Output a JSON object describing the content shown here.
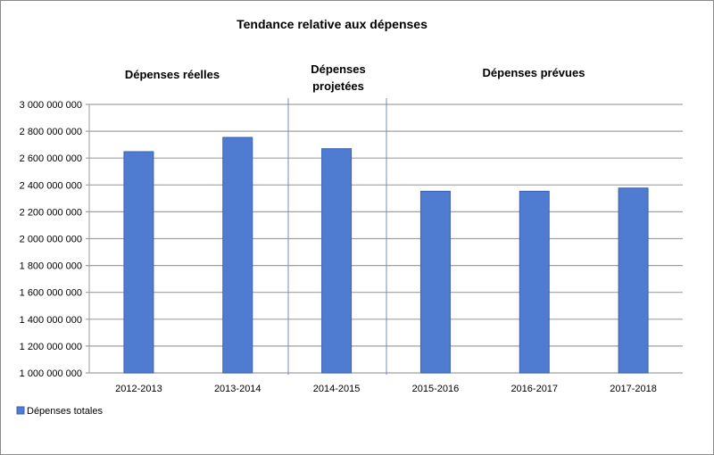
{
  "chart_data": {
    "type": "bar",
    "title": "Tendance relative aux dépenses",
    "categories": [
      "2012-2013",
      "2013-2014",
      "2014-2015",
      "2015-2016",
      "2016-2017",
      "2017-2018"
    ],
    "series": [
      {
        "name": "Dépenses totales",
        "values": [
          2648000000,
          2754000000,
          2670000000,
          2353000000,
          2353000000,
          2377000000
        ]
      }
    ],
    "ylim": [
      1000000000,
      3000000000
    ],
    "yticks": [
      1000000000,
      1200000000,
      1400000000,
      1600000000,
      1800000000,
      2000000000,
      2200000000,
      2400000000,
      2600000000,
      2800000000,
      3000000000
    ],
    "ytick_labels": [
      "1 000 000 000",
      "1 200 000 000",
      "1 400 000 000",
      "1 600 000 000",
      "1 800 000 000",
      "2 000 000 000",
      "2 200 000 000",
      "2 400 000 000",
      "2 600 000 000",
      "2 800 000 000",
      "3 000 000 000"
    ],
    "sections": [
      {
        "label": "Dépenses réelles",
        "line2": ""
      },
      {
        "label": "Dépenses",
        "line2": "projetées"
      },
      {
        "label": "Dépenses prévues",
        "line2": ""
      }
    ],
    "legend_position": "bottom-left",
    "grid": true,
    "colors": {
      "bar": "#4f7bd1",
      "bar_edge": "#3a62b5",
      "separator": "#6f8fc7"
    }
  }
}
